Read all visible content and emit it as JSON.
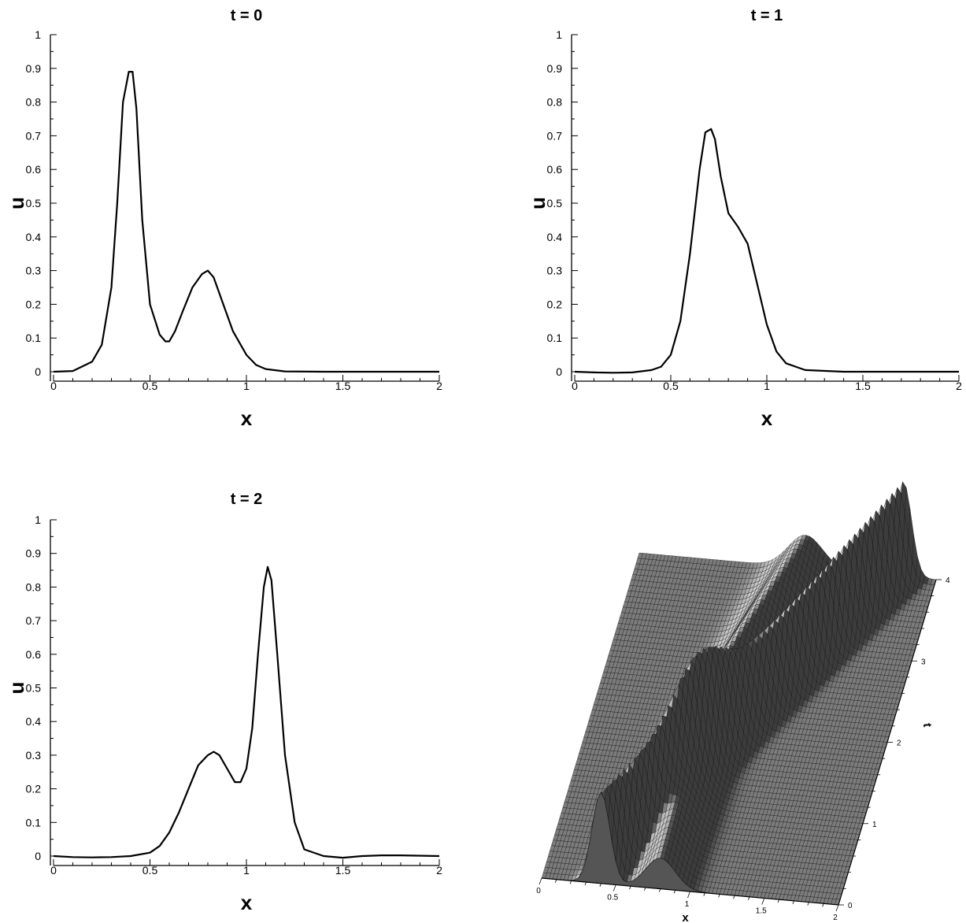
{
  "chart_data": [
    {
      "type": "line",
      "title": "t = 0",
      "xlabel": "x",
      "ylabel": "u",
      "xlim": [
        0,
        2
      ],
      "ylim": [
        0,
        1
      ],
      "xticks": [
        "0",
        "0.5",
        "1",
        "1.5",
        "2"
      ],
      "yticks": [
        "0",
        "0.1",
        "0.2",
        "0.3",
        "0.4",
        "0.5",
        "0.6",
        "0.7",
        "0.8",
        "0.9",
        "1"
      ],
      "series": [
        {
          "x": [
            0,
            0.1,
            0.2,
            0.25,
            0.3,
            0.33,
            0.36,
            0.39,
            0.41,
            0.43,
            0.46,
            0.5,
            0.55,
            0.58,
            0.6,
            0.63,
            0.67,
            0.72,
            0.77,
            0.8,
            0.83,
            0.88,
            0.93,
            1.0,
            1.05,
            1.1,
            1.2,
            1.4,
            1.7,
            2.0
          ],
          "y": [
            0.0,
            0.002,
            0.03,
            0.08,
            0.25,
            0.5,
            0.8,
            0.89,
            0.89,
            0.78,
            0.45,
            0.2,
            0.11,
            0.09,
            0.09,
            0.12,
            0.18,
            0.25,
            0.29,
            0.3,
            0.28,
            0.2,
            0.12,
            0.05,
            0.02,
            0.008,
            0.001,
            0.0,
            0.0,
            0.0
          ]
        }
      ]
    },
    {
      "type": "line",
      "title": "t = 1",
      "xlabel": "x",
      "ylabel": "u",
      "xlim": [
        0,
        2
      ],
      "ylim": [
        0,
        1
      ],
      "xticks": [
        "0",
        "0.5",
        "1",
        "1.5",
        "2"
      ],
      "yticks": [
        "0",
        "0.1",
        "0.2",
        "0.3",
        "0.4",
        "0.5",
        "0.6",
        "0.7",
        "0.8",
        "0.9",
        "1"
      ],
      "series": [
        {
          "x": [
            0,
            0.1,
            0.2,
            0.3,
            0.4,
            0.45,
            0.5,
            0.55,
            0.6,
            0.65,
            0.68,
            0.71,
            0.73,
            0.76,
            0.8,
            0.85,
            0.9,
            0.95,
            1.0,
            1.05,
            1.1,
            1.2,
            1.4,
            1.7,
            2.0
          ],
          "y": [
            0.0,
            -0.002,
            -0.003,
            -0.002,
            0.005,
            0.015,
            0.05,
            0.15,
            0.35,
            0.6,
            0.71,
            0.72,
            0.69,
            0.58,
            0.47,
            0.43,
            0.38,
            0.26,
            0.14,
            0.06,
            0.025,
            0.005,
            0.0,
            0.0,
            0.0
          ]
        }
      ]
    },
    {
      "type": "line",
      "title": "t = 2",
      "xlabel": "x",
      "ylabel": "u",
      "xlim": [
        0,
        2
      ],
      "ylim": [
        0,
        1
      ],
      "xticks": [
        "0",
        "0.5",
        "1",
        "1.5",
        "2"
      ],
      "yticks": [
        "0",
        "0.1",
        "0.2",
        "0.3",
        "0.4",
        "0.5",
        "0.6",
        "0.7",
        "0.8",
        "0.9",
        "1"
      ],
      "series": [
        {
          "x": [
            0,
            0.1,
            0.2,
            0.3,
            0.4,
            0.5,
            0.55,
            0.6,
            0.65,
            0.7,
            0.75,
            0.8,
            0.83,
            0.86,
            0.9,
            0.94,
            0.97,
            1.0,
            1.03,
            1.06,
            1.09,
            1.11,
            1.13,
            1.16,
            1.2,
            1.25,
            1.3,
            1.4,
            1.5,
            1.6,
            1.7,
            1.8,
            2.0
          ],
          "y": [
            0.0,
            -0.003,
            -0.004,
            -0.003,
            0.0,
            0.01,
            0.03,
            0.07,
            0.13,
            0.2,
            0.27,
            0.3,
            0.31,
            0.3,
            0.26,
            0.22,
            0.22,
            0.26,
            0.38,
            0.6,
            0.8,
            0.86,
            0.82,
            0.6,
            0.3,
            0.1,
            0.02,
            0.0,
            -0.005,
            0.0,
            0.002,
            0.002,
            0.0
          ]
        }
      ]
    },
    {
      "type": "surface",
      "xlabel": "x",
      "ylabel": "t",
      "xlim": [
        0,
        2
      ],
      "ylim": [
        0,
        4
      ],
      "xticks": [
        "0",
        "0.5",
        "1",
        "1.5",
        "2"
      ],
      "yticks": [
        "0",
        "1",
        "2",
        "3",
        "4"
      ],
      "colormap": "grayscale"
    }
  ]
}
